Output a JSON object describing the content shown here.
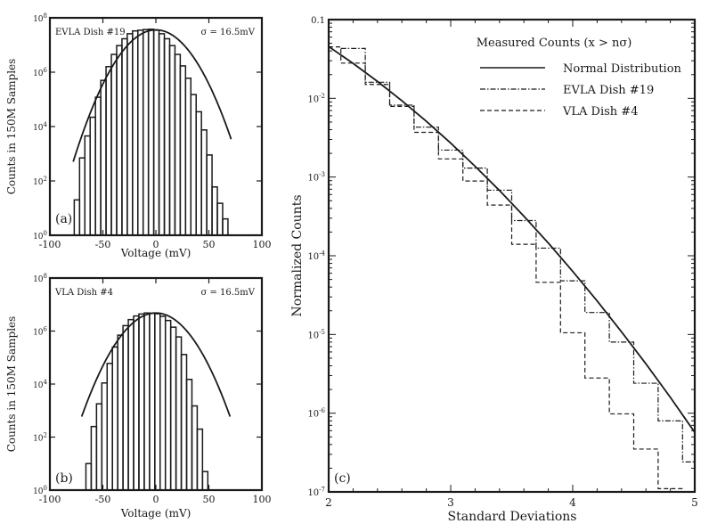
{
  "chart_data": [
    {
      "type": "histogram",
      "panel_label": "(a)",
      "inset_title": "EVLA Dish #19",
      "sigma_label": "σ = 16.5mV",
      "xlabel": "Voltage (mV)",
      "ylabel": "Counts in 150M Samples",
      "yscale": "log",
      "xlim": [
        -100,
        100
      ],
      "ylim_exp": [
        0,
        8
      ],
      "x_ticks": [
        "-100",
        "-50",
        "0",
        "50",
        "100"
      ],
      "y_ticks": [
        {
          "base": "10",
          "exp": "0"
        },
        {
          "base": "10",
          "exp": "2"
        },
        {
          "base": "10",
          "exp": "4"
        },
        {
          "base": "10",
          "exp": "6"
        },
        {
          "base": "10",
          "exp": "8"
        }
      ],
      "histogram_edges": [
        -77,
        -72,
        -67,
        -62,
        -57,
        -52,
        -47,
        -42,
        -37,
        -32,
        -27,
        -22,
        -17,
        -12,
        -7,
        -2,
        3,
        8,
        13,
        18,
        23,
        28,
        33,
        38,
        43,
        48,
        53,
        58,
        63,
        68
      ],
      "histogram_counts": [
        20,
        700,
        4500,
        22000,
        120000,
        500000,
        1600000,
        4500000,
        9500000,
        17000000,
        26000000,
        33000000,
        35000000,
        37000000,
        38000000,
        35000000,
        26000000,
        17000000,
        9500000,
        4500000,
        1700000,
        600000,
        150000,
        35000,
        7500,
        900,
        60,
        15,
        4
      ],
      "normal_curve": {
        "sigma_mV": 16.5,
        "peak": 36000000,
        "x_range": [
          -78,
          71
        ]
      }
    },
    {
      "type": "histogram",
      "panel_label": "(b)",
      "inset_title": "VLA Dish #4",
      "sigma_label": "σ = 16.5mV",
      "xlabel": "Voltage (mV)",
      "ylabel": "Counts in 150M Samples",
      "yscale": "log",
      "xlim": [
        -100,
        100
      ],
      "ylim_exp": [
        0,
        8
      ],
      "x_ticks": [
        "-100",
        "-50",
        "0",
        "50",
        "100"
      ],
      "y_ticks": [
        {
          "base": "10",
          "exp": "0"
        },
        {
          "base": "10",
          "exp": "2"
        },
        {
          "base": "10",
          "exp": "4"
        },
        {
          "base": "10",
          "exp": "6"
        },
        {
          "base": "10",
          "exp": "8"
        }
      ],
      "histogram_edges": [
        -66,
        -61,
        -56,
        -51,
        -46,
        -41,
        -36,
        -31,
        -26,
        -21,
        -16,
        -11,
        -6,
        -1,
        4,
        9,
        14,
        19,
        24,
        29,
        34,
        39,
        44,
        49,
        54,
        59,
        64
      ],
      "histogram_counts": [
        10,
        250,
        1800,
        11000,
        60000,
        250000,
        700000,
        1600000,
        2700000,
        3700000,
        4400000,
        4800000,
        4700000,
        4500000,
        3600000,
        2500000,
        1400000,
        600000,
        130000,
        15000,
        1500,
        200,
        5,
        0.5,
        1,
        1
      ],
      "normal_curve": {
        "sigma_mV": 16.5,
        "peak": 4800000,
        "x_range": [
          -70,
          70
        ]
      }
    },
    {
      "type": "step_line",
      "panel_label": "(c)",
      "xlabel": "Standard Deviations",
      "ylabel": "Normalized Counts",
      "yscale": "log",
      "xlim": [
        2,
        5
      ],
      "ylim": [
        1e-07,
        0.1
      ],
      "x_ticks": [
        "2",
        "3",
        "4",
        "5"
      ],
      "y_ticks": [
        {
          "base": "0.1",
          "exp": ""
        },
        {
          "base": "10",
          "exp": "-2"
        },
        {
          "base": "10",
          "exp": "-3"
        },
        {
          "base": "10",
          "exp": "-4"
        },
        {
          "base": "10",
          "exp": "-5"
        },
        {
          "base": "10",
          "exp": "-6"
        },
        {
          "base": "10",
          "exp": "-7"
        }
      ],
      "legend_title": "Measured Counts (x > nσ)",
      "legend_position": "top-right",
      "series": [
        {
          "name": "Normal Distribution",
          "style": "solid",
          "x": [
            2.0,
            2.2,
            2.4,
            2.6,
            2.8,
            3.0,
            3.2,
            3.4,
            3.6,
            3.8,
            4.0,
            4.2,
            4.4,
            4.6,
            4.8,
            5.0
          ],
          "y": [
            0.0455,
            0.0278,
            0.0164,
            0.00932,
            0.00511,
            0.0027,
            0.00137,
            0.000674,
            0.000318,
            0.000145,
            6.33e-05,
            2.67e-05,
            1.08e-05,
            4.23e-06,
            1.59e-06,
            5.7e-07
          ]
        },
        {
          "name": "EVLA Dish #19",
          "style": "dash-dot",
          "step_edges": [
            2.1,
            2.3,
            2.5,
            2.7,
            2.9,
            3.1,
            3.3,
            3.5,
            3.7,
            3.9,
            4.1,
            4.3,
            4.5,
            4.7,
            4.9
          ],
          "step_values": [
            0.043,
            0.016,
            0.0082,
            0.0043,
            0.0022,
            0.0013,
            0.00068,
            0.00028,
            0.000125,
            4.8e-05,
            1.9e-05,
            8e-06,
            2.4e-06,
            8e-07,
            2.4e-07
          ]
        },
        {
          "name": "VLA Dish #4",
          "style": "dashed",
          "step_edges": [
            2.0,
            2.1,
            2.3,
            2.5,
            2.7,
            2.9,
            3.1,
            3.3,
            3.5,
            3.7,
            3.9,
            4.1,
            4.3,
            4.5,
            4.7,
            4.9
          ],
          "step_values": [
            0.045,
            0.028,
            0.015,
            0.0079,
            0.0037,
            0.0017,
            0.00089,
            0.00044,
            0.00014,
            4.6e-05,
            1.05e-05,
            2.8e-06,
            9.8e-07,
            3.5e-07,
            1.1e-07
          ]
        }
      ]
    }
  ]
}
